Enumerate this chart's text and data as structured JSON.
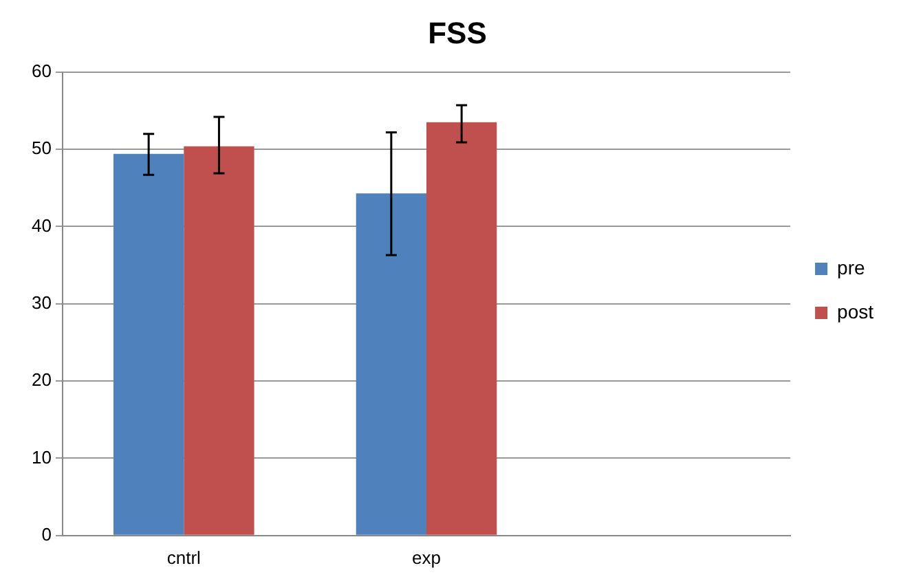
{
  "chart_data": {
    "type": "bar",
    "title": "FSS",
    "categories": [
      "cntrl",
      "exp",
      null
    ],
    "series": [
      {
        "name": "pre",
        "color": "#4f81bd",
        "values": [
          49.4,
          44.3,
          null
        ],
        "errors": [
          [
            46.7,
            52.0
          ],
          [
            36.3,
            52.2
          ],
          null
        ]
      },
      {
        "name": "post",
        "color": "#c0504d",
        "values": [
          50.4,
          53.5,
          null
        ],
        "errors": [
          [
            46.9,
            54.2
          ],
          [
            50.9,
            55.7
          ],
          null
        ]
      }
    ],
    "ylim": [
      0,
      60
    ],
    "yticks": [
      0,
      10,
      20,
      30,
      40,
      50,
      60
    ],
    "grid": "y",
    "legend": "right"
  }
}
